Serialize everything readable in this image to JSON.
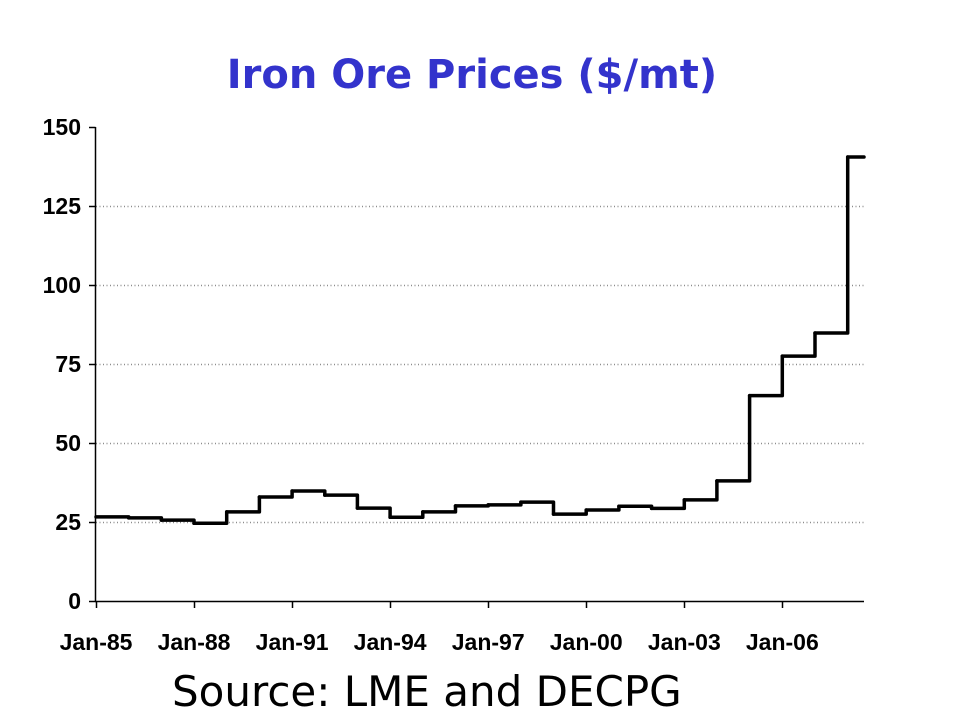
{
  "chart_data": {
    "type": "line",
    "step": true,
    "title": "Iron Ore Prices ($/mt)",
    "x": [
      "Jan-85",
      "Jan-86",
      "Jan-87",
      "Jan-88",
      "Jan-89",
      "Jan-90",
      "Jan-91",
      "Jan-92",
      "Jan-93",
      "Jan-94",
      "Jan-95",
      "Jan-96",
      "Jan-97",
      "Jan-98",
      "Jan-99",
      "Jan-00",
      "Jan-01",
      "Jan-02",
      "Jan-03",
      "Jan-04",
      "Jan-05",
      "Jan-06",
      "Jan-07",
      "Jan-08"
    ],
    "series": [
      {
        "values": [
          26.6,
          26.3,
          25.6,
          24.6,
          28.2,
          32.9,
          34.8,
          33.5,
          29.4,
          26.5,
          28.2,
          30.1,
          30.4,
          31.3,
          27.5,
          28.8,
          30.0,
          29.3,
          32.0,
          38.0,
          65.0,
          77.5,
          84.8,
          140.5
        ]
      }
    ],
    "xlim": [
      "Jan-85",
      "Jul-08"
    ],
    "ylim": [
      0,
      150
    ],
    "xticks": [
      "Jan-85",
      "Jan-88",
      "Jan-91",
      "Jan-94",
      "Jan-97",
      "Jan-00",
      "Jan-03",
      "Jan-06"
    ],
    "yticks": [
      0,
      25,
      50,
      75,
      100,
      125,
      150
    ],
    "grid": true
  },
  "footer": {
    "source": "Source: LME and DECPG"
  },
  "colors": {
    "title": "#3333cc",
    "series": "#000000",
    "grid": "#8c8c8c"
  }
}
